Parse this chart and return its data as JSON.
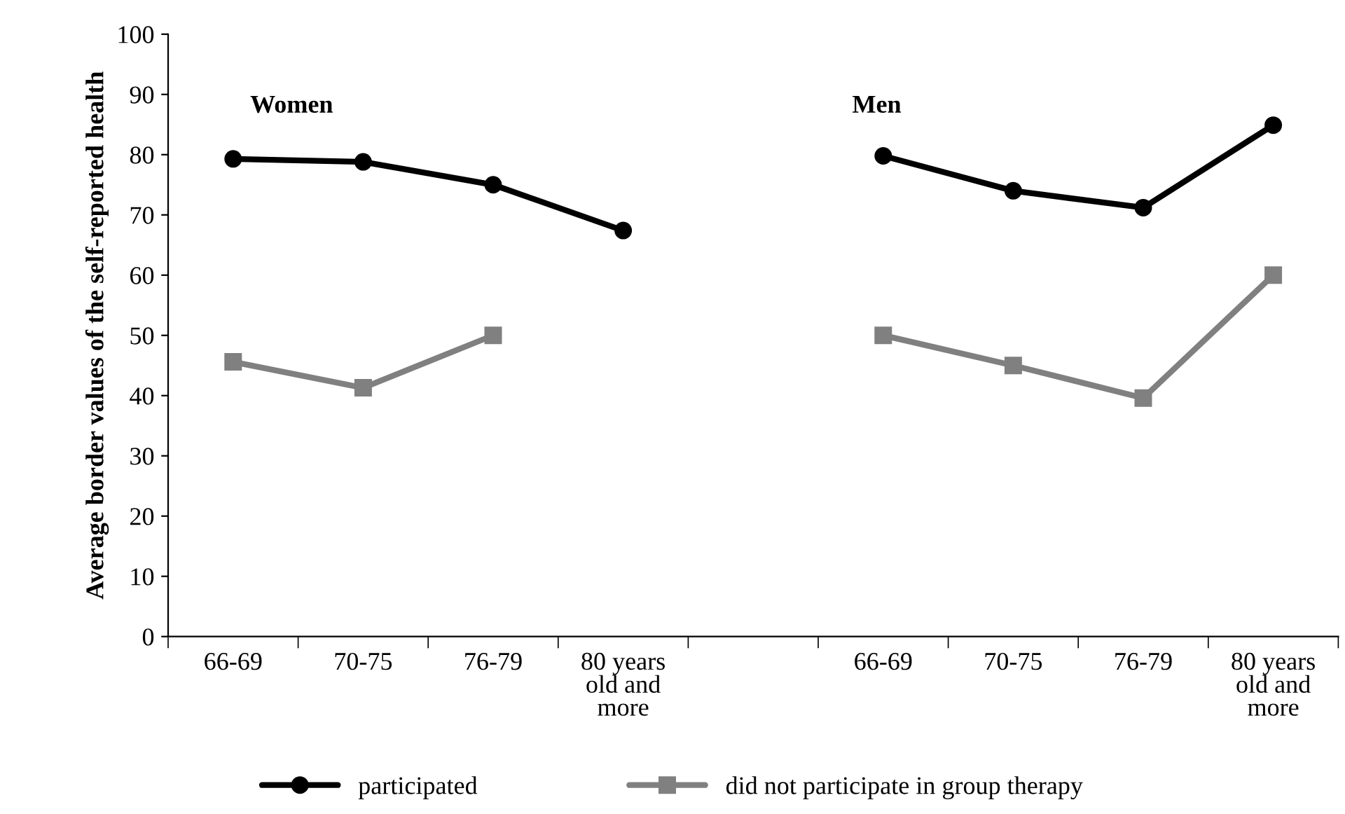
{
  "chart_data": {
    "type": "line",
    "ylabel": "Average border values of the self-reported health",
    "categories": [
      "66-69",
      "70-75",
      "76-79",
      "80 years\nold and\nmore",
      null,
      "66-69",
      "70-75",
      "76-79",
      "80 years\nold and\nmore"
    ],
    "series": [
      {
        "name": "participated",
        "color": "#000000",
        "marker": "circle",
        "values": [
          79.3,
          78.8,
          75.0,
          67.4,
          null,
          79.8,
          74.0,
          71.2,
          84.9
        ]
      },
      {
        "name": "did not participate in group therapy",
        "color": "#808080",
        "marker": "square",
        "values": [
          45.6,
          41.3,
          50.0,
          null,
          null,
          50.0,
          45.0,
          39.6,
          60.0
        ]
      }
    ],
    "annotations": [
      "Women",
      "Men"
    ],
    "ylim": [
      0,
      100
    ],
    "yticks": [
      0,
      10,
      20,
      30,
      40,
      50,
      60,
      70,
      80,
      90,
      100
    ],
    "grid": false,
    "legend": "bottom",
    "line_style": "solid"
  }
}
